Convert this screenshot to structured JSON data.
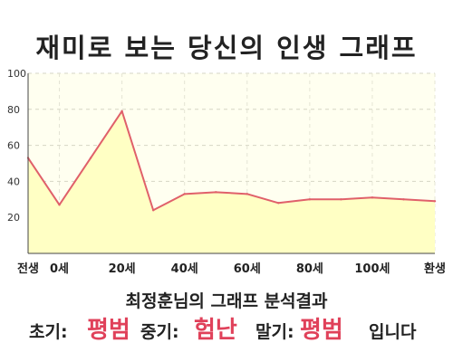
{
  "title": "재미로 보는 당신의 인생 그래프",
  "summary": "최정훈님의 그래프 분석결과",
  "result": {
    "early_label": "초기:",
    "early_value": "평범",
    "middle_label": "중기:",
    "middle_value": "험난",
    "late_label": "말기:",
    "late_value": "평범",
    "suffix": "입니다"
  },
  "colors": {
    "line": "#e0606a",
    "area": "#ffffc4",
    "plot_bg": "#fffff0",
    "highlight": "#e0415a"
  },
  "chart_data": {
    "type": "area",
    "title": "재미로 보는 당신의 인생 그래프",
    "xlabel": "",
    "ylabel": "",
    "ylim": [
      0,
      100
    ],
    "y_ticks": [
      20,
      40,
      60,
      80,
      100
    ],
    "x_ticks": [
      "전생",
      "0세",
      "20세",
      "40세",
      "60세",
      "80세",
      "100세",
      "환생"
    ],
    "grid": true,
    "series": [
      {
        "x": [
          "전생",
          "0세",
          "",
          "20세",
          "",
          "40세",
          "",
          "60세",
          "",
          "80세",
          "",
          "100세",
          "",
          "환생"
        ],
        "values": [
          53,
          27,
          53,
          79,
          24,
          33,
          34,
          33,
          28,
          30,
          30,
          31,
          30,
          29
        ]
      }
    ]
  }
}
